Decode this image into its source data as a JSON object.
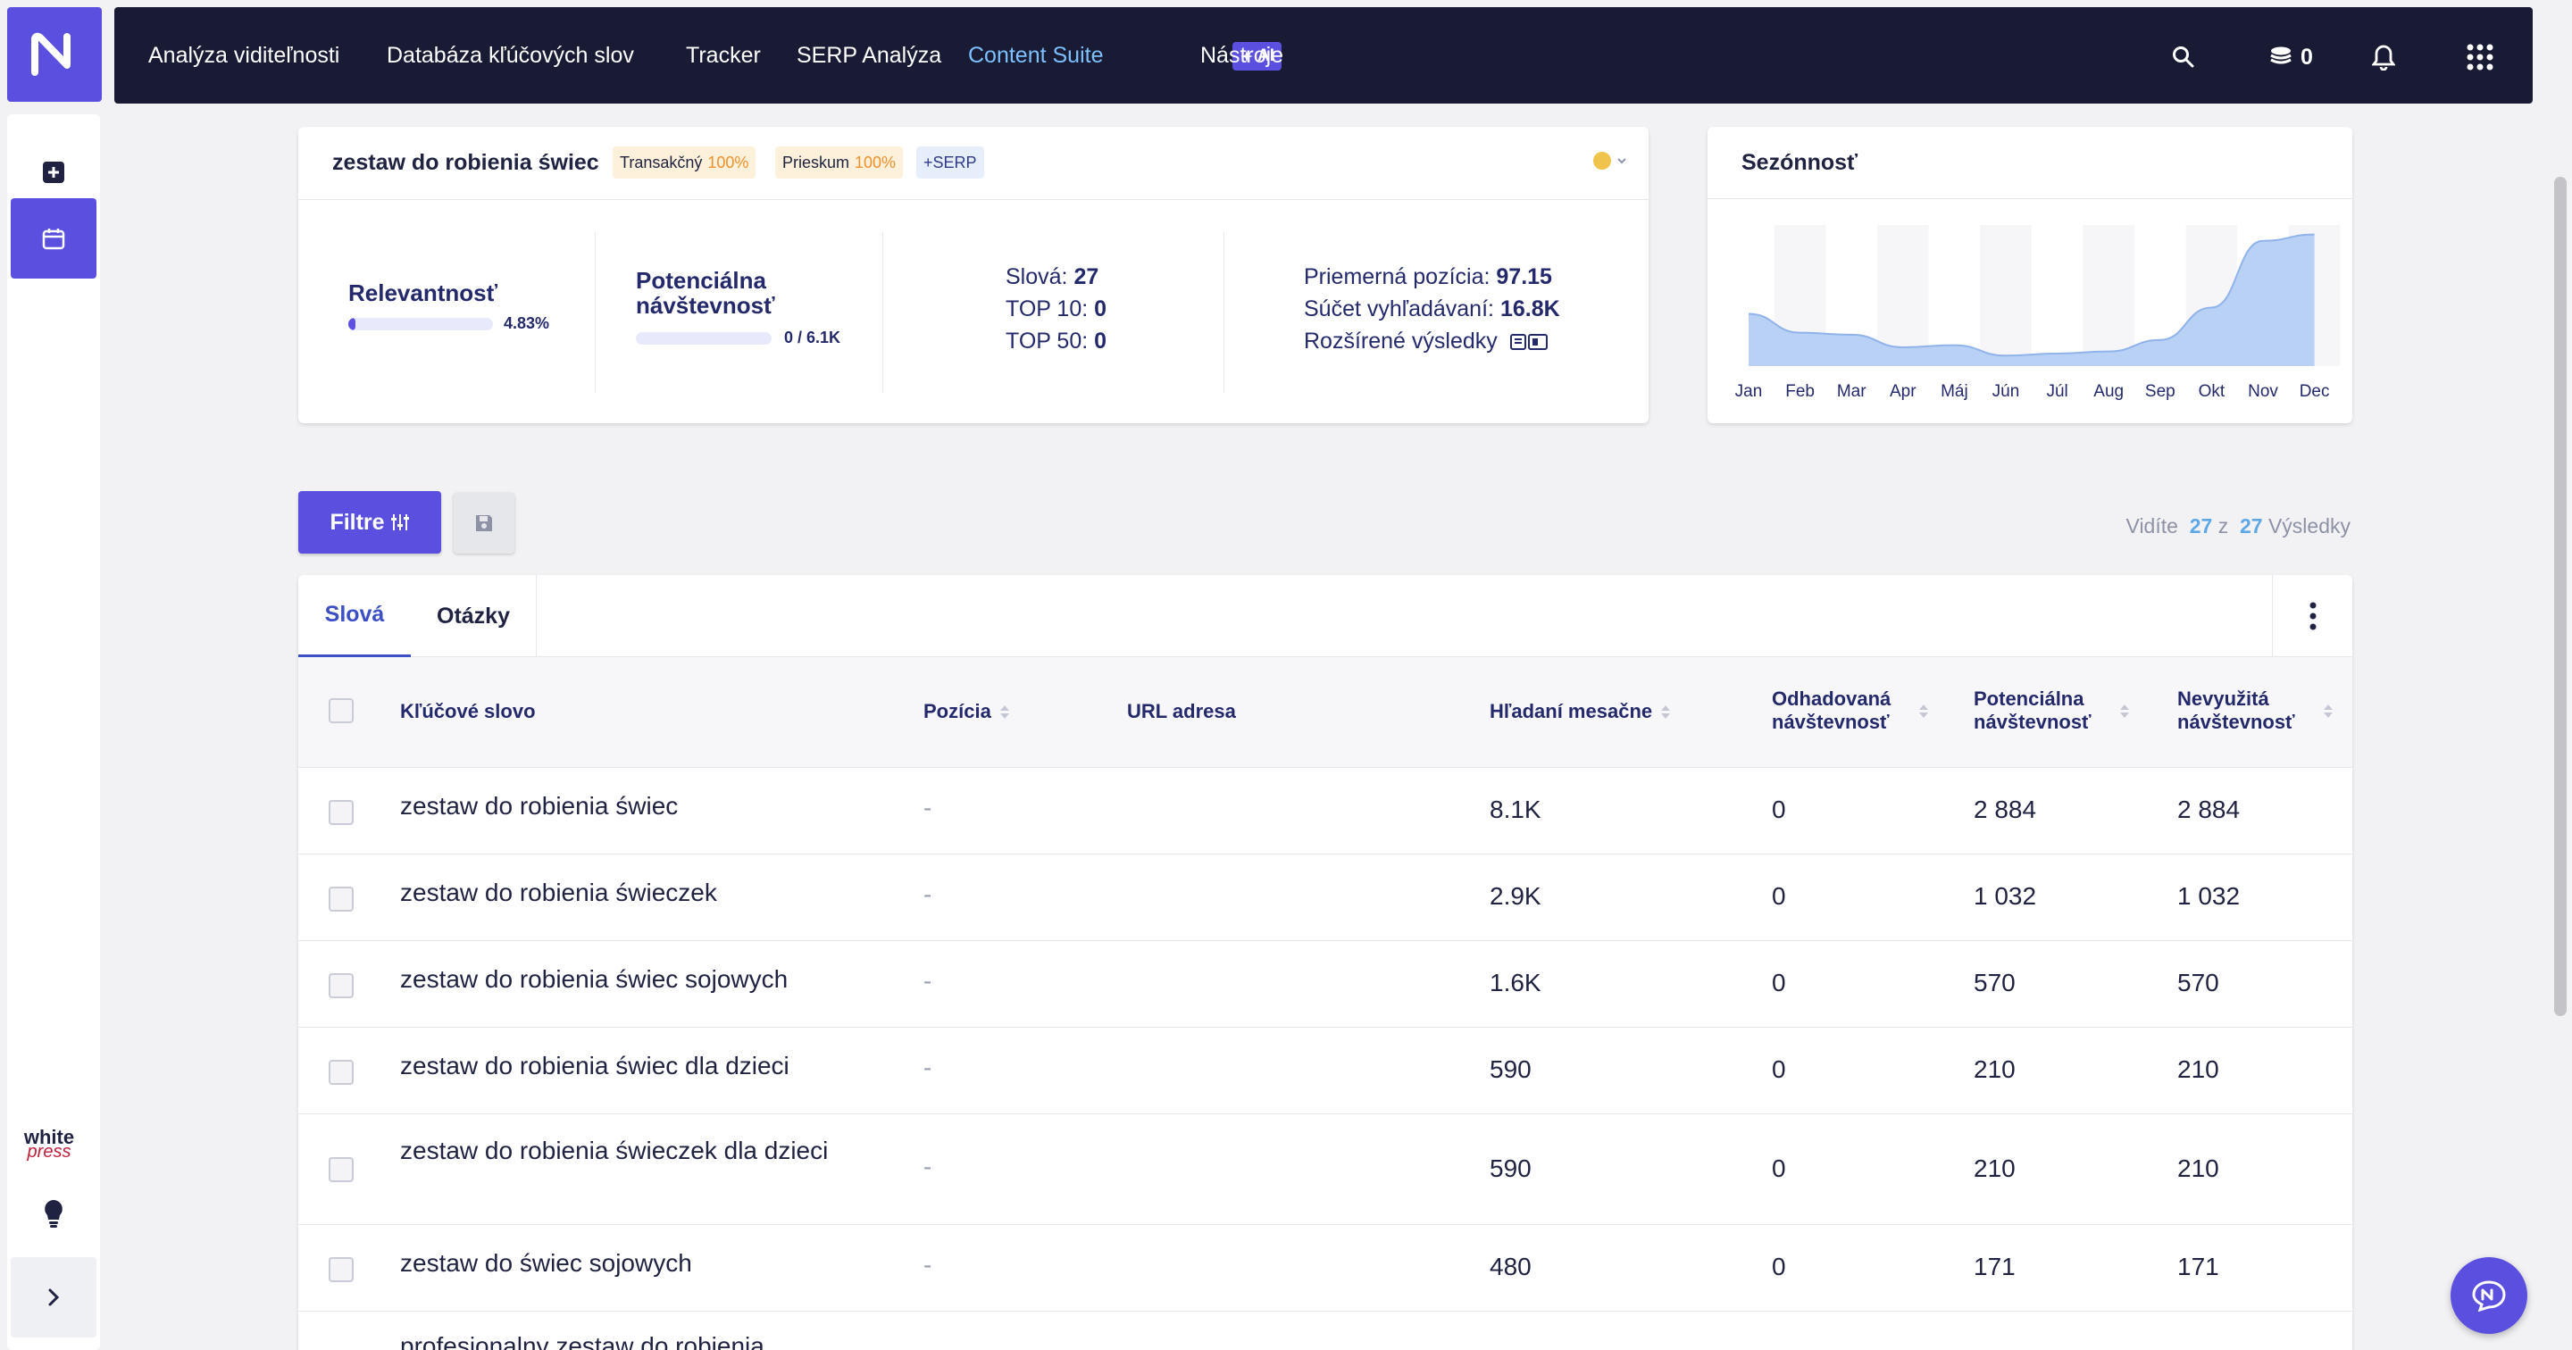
{
  "nav": {
    "items": [
      "Analýza viditeľnosti",
      "Databáza kľúčových slov",
      "Tracker",
      "SERP Analýza",
      "Content Suite",
      "Nástroje"
    ],
    "ai_badge": "AI",
    "credits": "0"
  },
  "sidebar": {
    "brand_top": "white",
    "brand_bottom": "press"
  },
  "keyword_card": {
    "title": "zestaw do robienia świec",
    "tags": [
      {
        "label": "Transakčný",
        "pct": "100%"
      },
      {
        "label": "Prieskum",
        "pct": "100%"
      },
      {
        "label": "+SERP"
      }
    ],
    "relevance_label": "Relevantnosť",
    "relevance_value": "4.83%",
    "relevance_fraction": 0.0483,
    "potential_label_1": "Potenciálna",
    "potential_label_2": "návštevnosť",
    "potential_value": "0 / 6.1K",
    "potential_fraction": 0,
    "words_label": "Slová:",
    "words_value": "27",
    "top10_label": "TOP 10:",
    "top10_value": "0",
    "top50_label": "TOP 50:",
    "top50_value": "0",
    "avg_pos_label": "Priemerná pozícia:",
    "avg_pos_value": "97.15",
    "search_sum_label": "Súčet vyhľadávaní:",
    "search_sum_value": "16.8K",
    "extended_label": "Rozšírené výsledky"
  },
  "seasonality": {
    "title": "Sezónnosť",
    "chart_data": {
      "type": "area",
      "categories": [
        "Jan",
        "Feb",
        "Mar",
        "Apr",
        "Máj",
        "Jún",
        "Júl",
        "Aug",
        "Sep",
        "Okt",
        "Nov",
        "Dec"
      ],
      "values": [
        50,
        32,
        30,
        18,
        20,
        10,
        12,
        14,
        25,
        56,
        120,
        126
      ],
      "ylim": [
        0,
        130
      ],
      "grid": false
    }
  },
  "toolbar": {
    "filter_label": "Filtre",
    "results_prefix": "Vidíte",
    "results_shown": "27",
    "results_mid": "z",
    "results_total": "27",
    "results_suffix": "Výsledky"
  },
  "tabs": [
    "Slová",
    "Otázky"
  ],
  "table": {
    "columns": {
      "keyword": "Kľúčové slovo",
      "position": "Pozícia",
      "url": "URL adresa",
      "monthly": "Hľadaní mesačne",
      "est_1": "Odhadovaná",
      "est_2": "návštevnosť",
      "pot_1": "Potenciálna",
      "pot_2": "návštevnosť",
      "unused_1": "Nevyužitá",
      "unused_2": "návštevnosť"
    },
    "rows": [
      {
        "keyword": "zestaw do robienia świec",
        "position": "-",
        "monthly": "8.1K",
        "est": "0",
        "pot": "2 884",
        "unused": "2 884"
      },
      {
        "keyword": "zestaw do robienia świeczek",
        "position": "-",
        "monthly": "2.9K",
        "est": "0",
        "pot": "1 032",
        "unused": "1 032"
      },
      {
        "keyword": "zestaw do robienia świec sojowych",
        "position": "-",
        "monthly": "1.6K",
        "est": "0",
        "pot": "570",
        "unused": "570"
      },
      {
        "keyword": "zestaw do robienia świec dla dzieci",
        "position": "-",
        "monthly": "590",
        "est": "0",
        "pot": "210",
        "unused": "210"
      },
      {
        "keyword": "zestaw do robienia świeczek dla dzieci",
        "position": "-",
        "monthly": "590",
        "est": "0",
        "pot": "210",
        "unused": "210"
      },
      {
        "keyword": "zestaw do świec sojowych",
        "position": "-",
        "monthly": "480",
        "est": "0",
        "pot": "171",
        "unused": "171"
      },
      {
        "keyword": "profesjonalny zestaw do robienia",
        "position": "",
        "monthly": "",
        "est": "",
        "pot": "",
        "unused": ""
      }
    ]
  },
  "colors": {
    "accent": "#5b4fe0",
    "nav_bg": "#181b33",
    "link_active": "#7dc0ff",
    "chart_fill": "#b9d1f4"
  }
}
